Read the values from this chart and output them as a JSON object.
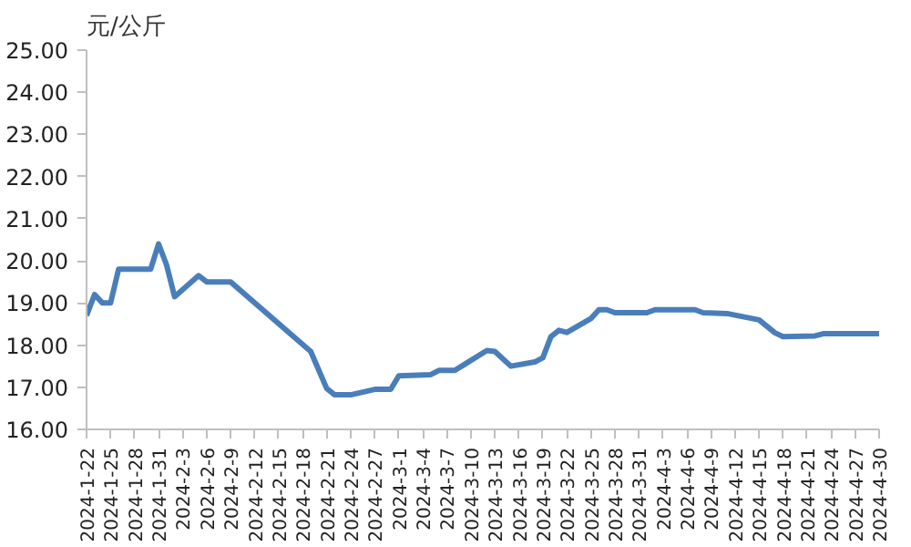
{
  "chart_data": {
    "type": "line",
    "ylabel": "元/公斤",
    "x": [
      "2024-01-22",
      "2024-01-23",
      "2024-01-24",
      "2024-01-25",
      "2024-01-26",
      "2024-01-29",
      "2024-01-30",
      "2024-01-31",
      "2024-02-01",
      "2024-02-02",
      "2024-02-05",
      "2024-02-06",
      "2024-02-09",
      "2024-02-19",
      "2024-02-21",
      "2024-02-22",
      "2024-02-24",
      "2024-02-27",
      "2024-02-29",
      "2024-03-01",
      "2024-03-05",
      "2024-03-06",
      "2024-03-08",
      "2024-03-12",
      "2024-03-13",
      "2024-03-15",
      "2024-03-18",
      "2024-03-19",
      "2024-03-20",
      "2024-03-21",
      "2024-03-22",
      "2024-03-25",
      "2024-03-26",
      "2024-03-27",
      "2024-03-28",
      "2024-04-01",
      "2024-04-02",
      "2024-04-07",
      "2024-04-08",
      "2024-04-11",
      "2024-04-15",
      "2024-04-17",
      "2024-04-18",
      "2024-04-22",
      "2024-04-23",
      "2024-04-30"
    ],
    "series": [
      {
        "color": "#4a7ebb",
        "values": [
          18.7,
          19.2,
          19.0,
          19.0,
          19.8,
          19.8,
          19.8,
          20.4,
          19.9,
          19.15,
          19.65,
          19.5,
          19.5,
          17.85,
          16.97,
          16.82,
          16.82,
          16.95,
          16.95,
          17.27,
          17.3,
          17.4,
          17.4,
          17.87,
          17.85,
          17.5,
          17.6,
          17.7,
          18.2,
          18.35,
          18.3,
          18.63,
          18.84,
          18.84,
          18.77,
          18.77,
          18.84,
          18.84,
          18.77,
          18.75,
          18.6,
          18.29,
          18.2,
          18.22,
          18.27,
          18.27
        ]
      }
    ],
    "xlim": [
      "2024-01-22",
      "2024-04-30"
    ],
    "xticks": [
      {
        "value": "2024-01-22",
        "label": "2024-1-22"
      },
      {
        "value": "2024-01-25",
        "label": "2024-1-25"
      },
      {
        "value": "2024-01-28",
        "label": "2024-1-28"
      },
      {
        "value": "2024-01-31",
        "label": "2024-1-31"
      },
      {
        "value": "2024-02-03",
        "label": "2024-2-3"
      },
      {
        "value": "2024-02-06",
        "label": "2024-2-6"
      },
      {
        "value": "2024-02-09",
        "label": "2024-2-9"
      },
      {
        "value": "2024-02-12",
        "label": "2024-2-12"
      },
      {
        "value": "2024-02-15",
        "label": "2024-2-15"
      },
      {
        "value": "2024-02-18",
        "label": "2024-2-18"
      },
      {
        "value": "2024-02-21",
        "label": "2024-2-21"
      },
      {
        "value": "2024-02-24",
        "label": "2024-2-24"
      },
      {
        "value": "2024-02-27",
        "label": "2024-2-27"
      },
      {
        "value": "2024-03-01",
        "label": "2024-3-1"
      },
      {
        "value": "2024-03-04",
        "label": "2024-3-4"
      },
      {
        "value": "2024-03-07",
        "label": "2024-3-7"
      },
      {
        "value": "2024-03-10",
        "label": "2024-3-10"
      },
      {
        "value": "2024-03-13",
        "label": "2024-3-13"
      },
      {
        "value": "2024-03-16",
        "label": "2024-3-16"
      },
      {
        "value": "2024-03-19",
        "label": "2024-3-19"
      },
      {
        "value": "2024-03-22",
        "label": "2024-3-22"
      },
      {
        "value": "2024-03-25",
        "label": "2024-3-25"
      },
      {
        "value": "2024-03-28",
        "label": "2024-3-28"
      },
      {
        "value": "2024-03-31",
        "label": "2024-3-31"
      },
      {
        "value": "2024-04-03",
        "label": "2024-4-3"
      },
      {
        "value": "2024-04-06",
        "label": "2024-4-6"
      },
      {
        "value": "2024-04-09",
        "label": "2024-4-9"
      },
      {
        "value": "2024-04-12",
        "label": "2024-4-12"
      },
      {
        "value": "2024-04-15",
        "label": "2024-4-15"
      },
      {
        "value": "2024-04-18",
        "label": "2024-4-18"
      },
      {
        "value": "2024-04-21",
        "label": "2024-4-21"
      },
      {
        "value": "2024-04-24",
        "label": "2024-4-24"
      },
      {
        "value": "2024-04-27",
        "label": "2024-4-27"
      },
      {
        "value": "2024-04-30",
        "label": "2024-4-30"
      }
    ],
    "ylim": [
      16,
      25
    ],
    "yticks": [
      {
        "value": 16,
        "label": "16.00"
      },
      {
        "value": 17,
        "label": "17.00"
      },
      {
        "value": 18,
        "label": "18.00"
      },
      {
        "value": 19,
        "label": "19.00"
      },
      {
        "value": 20,
        "label": "20.00"
      },
      {
        "value": 21,
        "label": "21.00"
      },
      {
        "value": 22,
        "label": "22.00"
      },
      {
        "value": 23,
        "label": "23.00"
      },
      {
        "value": 24,
        "label": "24.00"
      },
      {
        "value": 25,
        "label": "25.00"
      }
    ],
    "grid": false,
    "line_style": "solid",
    "marker": "none"
  }
}
